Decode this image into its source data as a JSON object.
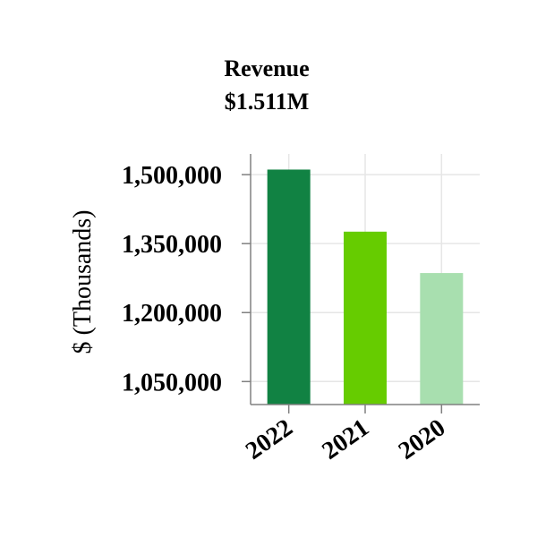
{
  "chart_data": {
    "type": "bar",
    "title": "Revenue",
    "subtitle": "$1.511M",
    "xlabel": "",
    "ylabel": "$ (Thousands)",
    "categories": [
      "2022",
      "2021",
      "2020"
    ],
    "values": [
      1511000,
      1376000,
      1286000
    ],
    "colors": [
      "#118243",
      "#66cc00",
      "#a8dfaf"
    ],
    "y_ticks": [
      1050000,
      1200000,
      1350000,
      1500000
    ],
    "y_tick_labels": [
      "1,050,000",
      "1,200,000",
      "1,350,000",
      "1,500,000"
    ],
    "ylim": [
      1000000,
      1545000
    ],
    "grid": true,
    "legend": "none"
  }
}
